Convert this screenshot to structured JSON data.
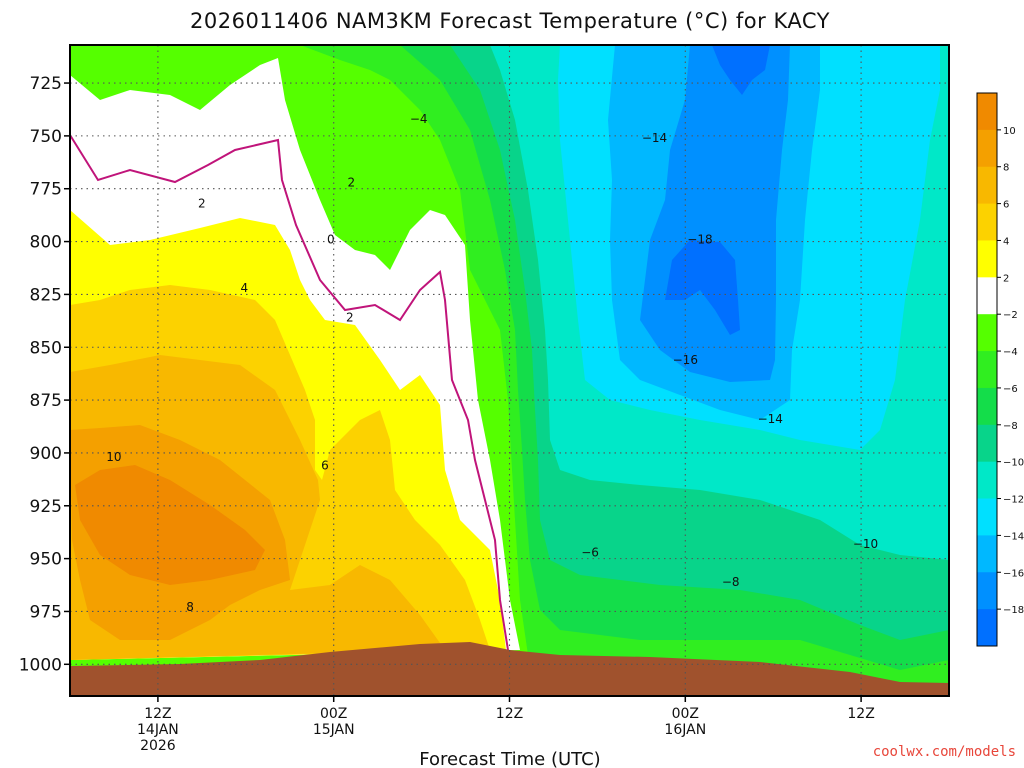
{
  "title": "2026011406 NAM3KM Forecast Temperature (°C) for KACY",
  "credit": "coolwx.com/models",
  "chart_data": {
    "type": "heatmap",
    "title": "2026011406 NAM3KM Forecast Temperature (°C) for KACY",
    "xlabel": "Forecast Time (UTC)",
    "ylabel": "",
    "x_range_hours": [
      0,
      60
    ],
    "y_range_hpa": [
      1015,
      707
    ],
    "grid": true,
    "y_ticks": [
      725,
      750,
      775,
      800,
      825,
      850,
      875,
      900,
      925,
      950,
      975,
      1000
    ],
    "y_tick_labels": [
      "725",
      "750",
      "775",
      "800",
      "825",
      "850",
      "875",
      "900",
      "925",
      "950",
      "975",
      "1000"
    ],
    "x_ticks": [
      {
        "hour": 6,
        "label": "12Z",
        "sub": [
          "14JAN",
          "2026"
        ]
      },
      {
        "hour": 18,
        "label": "00Z",
        "sub": [
          "15JAN"
        ]
      },
      {
        "hour": 30,
        "label": "12Z",
        "sub": []
      },
      {
        "hour": 42,
        "label": "00Z",
        "sub": [
          "16JAN"
        ]
      },
      {
        "hour": 54,
        "label": "12Z",
        "sub": []
      }
    ],
    "colorbar": {
      "levels": [
        10,
        8,
        6,
        4,
        2,
        -2,
        -4,
        -6,
        -8,
        -10,
        -12,
        -14,
        -16,
        -18
      ],
      "labels": [
        "10",
        "8",
        "6",
        "4",
        "2",
        "−2",
        "−4",
        "−6",
        "−8",
        "−10",
        "−12",
        "−14",
        "−16",
        "−18"
      ],
      "colors": [
        "#f08a00",
        "#f4a000",
        "#f8b800",
        "#fcd200",
        "#ffff00",
        "#ffffff",
        "#55ff00",
        "#30ee20",
        "#14dd4a",
        "#08d48a",
        "#00e8c8",
        "#00e0ff",
        "#00b8ff",
        "#0090ff",
        "#0070ff"
      ]
    },
    "color_key": {
      "t10": "#f08a00",
      "t8": "#f4a000",
      "t6": "#f8b800",
      "t4": "#fcd200",
      "t2": "#ffff00",
      "t0": "#ffffff",
      "tm2": "#55ff00",
      "tm4": "#30ee20",
      "tm6": "#14dd4a",
      "tm8": "#08d48a",
      "tm10": "#00e8c8",
      "tm12": "#00e0ff",
      "tm14": "#00b8ff",
      "tm16": "#0090ff",
      "tm18": "#0070ff",
      "ground": "#a0522d",
      "zero_line": "#c0147a"
    },
    "contour_labels": [
      {
        "text": "−4",
        "hour": 23.8,
        "p": 742
      },
      {
        "text": "2",
        "hour": 19.2,
        "p": 772
      },
      {
        "text": "2",
        "hour": 9.0,
        "p": 782
      },
      {
        "text": "0",
        "hour": 17.8,
        "p": 799
      },
      {
        "text": "4",
        "hour": 11.9,
        "p": 822
      },
      {
        "text": "2",
        "hour": 19.1,
        "p": 836
      },
      {
        "text": "−14",
        "hour": 39.9,
        "p": 751
      },
      {
        "text": "−18",
        "hour": 43.0,
        "p": 799
      },
      {
        "text": "−16",
        "hour": 42.0,
        "p": 856
      },
      {
        "text": "−14",
        "hour": 47.8,
        "p": 884
      },
      {
        "text": "10",
        "hour": 3.0,
        "p": 902
      },
      {
        "text": "6",
        "hour": 17.4,
        "p": 906
      },
      {
        "text": "−6",
        "hour": 35.5,
        "p": 947
      },
      {
        "text": "−10",
        "hour": 54.3,
        "p": 943
      },
      {
        "text": "−8",
        "hour": 45.1,
        "p": 961
      },
      {
        "text": "8",
        "hour": 8.2,
        "p": 973
      }
    ],
    "temperature_zones": [
      {
        "level": "tm2",
        "hours": [
          13,
          60
        ],
        "p": [
          707,
          1010
        ]
      },
      {
        "level": "tm4",
        "hours": [
          20,
          60
        ],
        "p": [
          707,
          1010
        ]
      },
      {
        "level": "tm6",
        "hours": [
          27,
          60
        ],
        "p": [
          707,
          1010
        ]
      },
      {
        "level": "tm8",
        "hours": [
          31,
          60
        ],
        "p": [
          707,
          1010
        ]
      },
      {
        "level": "tm10",
        "hours": [
          33,
          59
        ],
        "p": [
          707,
          960
        ]
      },
      {
        "level": "tm12",
        "hours": [
          34,
          56
        ],
        "p": [
          707,
          920
        ]
      },
      {
        "level": "tm14",
        "hours": [
          38,
          50
        ],
        "p": [
          707,
          880
        ]
      },
      {
        "level": "tm16",
        "hours": [
          40,
          47
        ],
        "p": [
          740,
          850
        ]
      },
      {
        "level": "tm18",
        "hours": [
          42,
          46
        ],
        "p": [
          795,
          840
        ]
      }
    ]
  }
}
